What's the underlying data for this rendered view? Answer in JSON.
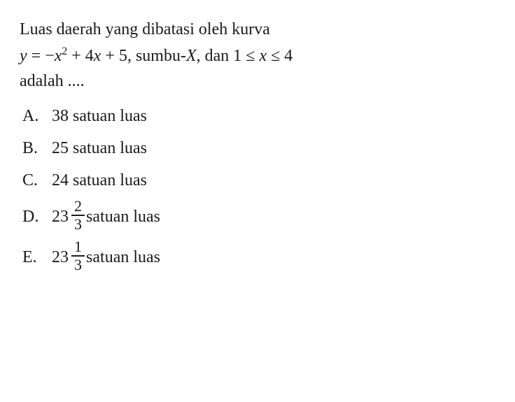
{
  "question": {
    "line1": "Luas daerah yang dibatasi oleh kurva",
    "eq_y": "y",
    "eq_eq": " = ",
    "eq_neg": "−",
    "eq_x": "x",
    "eq_sq": "2",
    "eq_rest": " + 4",
    "eq_x2": "x",
    "eq_rest2": " + 5, sumbu-",
    "eq_Xvar": "X",
    "eq_rest3": ", dan 1 ≤ ",
    "eq_x3": "x",
    "eq_rest4": " ≤ 4",
    "line3": "adalah ...."
  },
  "options": {
    "a": {
      "letter": "A.",
      "text": "38 satuan luas"
    },
    "b": {
      "letter": "B.",
      "text": "25 satuan luas"
    },
    "c": {
      "letter": "C.",
      "text": "24 satuan luas"
    },
    "d": {
      "letter": "D.",
      "whole": "23",
      "num": "2",
      "den": "3",
      "tail": " satuan luas"
    },
    "e": {
      "letter": "E.",
      "whole": "23",
      "num": "1",
      "den": "3",
      "tail": " satuan luas"
    }
  },
  "colors": {
    "text": "#1a1a1a",
    "background": "#ffffff"
  },
  "typography": {
    "base_fontsize_pt": 18,
    "font_family": "Georgia / serif",
    "line_height": 1.5
  }
}
